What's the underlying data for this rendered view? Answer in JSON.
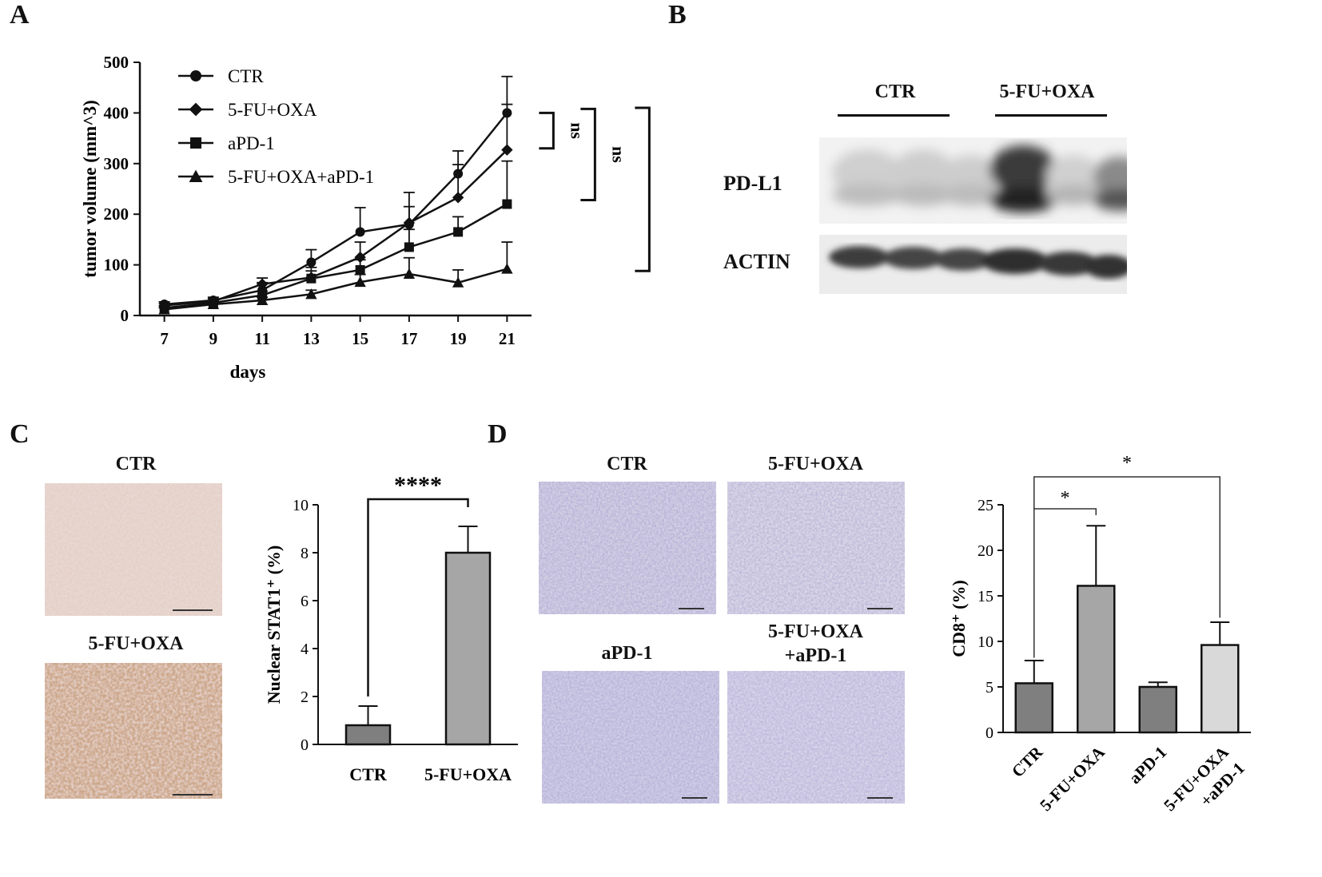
{
  "panels": {
    "A": {
      "letter": "A",
      "chart_data": {
        "type": "line",
        "xlabel": "days",
        "ylabel": "tumor volume (mm^3)",
        "x": [
          7,
          9,
          11,
          13,
          15,
          17,
          19,
          21
        ],
        "xlim": [
          6,
          22
        ],
        "ylim": [
          0,
          500
        ],
        "yticks": [
          0,
          100,
          200,
          300,
          400,
          500
        ],
        "xticks": [
          7,
          9,
          11,
          13,
          15,
          17,
          19,
          21
        ],
        "legend_position": "top-left",
        "series": [
          {
            "name": "CTR",
            "marker": "circle",
            "values": [
              22,
              30,
              50,
              105,
              165,
              180,
              280,
              400
            ],
            "errors": [
              5,
              6,
              15,
              25,
              48,
              35,
              45,
              72
            ]
          },
          {
            "name": "5-FU+OXA",
            "marker": "diamond",
            "values": [
              20,
              28,
              62,
              75,
              115,
              183,
              233,
              327
            ],
            "errors": [
              4,
              5,
              12,
              20,
              30,
              60,
              65,
              90
            ]
          },
          {
            "name": "aPD-1",
            "marker": "square",
            "values": [
              15,
              25,
              40,
              73,
              90,
              135,
              165,
              220
            ],
            "errors": [
              3,
              4,
              8,
              15,
              20,
              35,
              30,
              85
            ]
          },
          {
            "name": "5-FU+OXA+aPD-1",
            "marker": "triangle",
            "values": [
              12,
              22,
              30,
              42,
              66,
              82,
              65,
              92
            ],
            "errors": [
              3,
              4,
              6,
              8,
              15,
              32,
              25,
              53
            ]
          }
        ],
        "significance": [
          {
            "label": "ns"
          },
          {
            "label": "ns"
          },
          {
            "label": "**"
          }
        ]
      }
    },
    "B": {
      "letter": "B",
      "group_labels": [
        "CTR",
        "5-FU+OXA"
      ],
      "row_labels": [
        "PD-L1",
        "ACTIN"
      ]
    },
    "C": {
      "letter": "C",
      "image_labels": [
        "CTR",
        "5-FU+OXA"
      ],
      "chart_data": {
        "type": "bar",
        "categories": [
          "CTR",
          "5-FU+OXA"
        ],
        "values": [
          0.8,
          8.0
        ],
        "errors": [
          0.8,
          1.1
        ],
        "ylabel": "Nuclear STAT1⁺ (%)",
        "ylim": [
          0,
          10
        ],
        "yticks": [
          0,
          2,
          4,
          6,
          8,
          10
        ],
        "significance": [
          {
            "label": "****"
          }
        ],
        "colors": [
          "#7f7f7f",
          "#a6a6a6"
        ]
      }
    },
    "D": {
      "letter": "D",
      "image_labels": [
        "CTR",
        "5-FU+OXA",
        "aPD-1",
        "5-FU+OXA",
        "+aPD-1"
      ],
      "chart_data": {
        "type": "bar",
        "categories": [
          "CTR",
          "5-FU+OXA",
          "aPD-1",
          "5-FU+OXA"
        ],
        "category_second_line": [
          "",
          "",
          "",
          "+aPD-1"
        ],
        "values": [
          5.4,
          16.1,
          5.0,
          9.6
        ],
        "errors": [
          2.5,
          6.6,
          0.5,
          2.5
        ],
        "ylabel": "CD8⁺ (%)",
        "ylim": [
          0,
          25
        ],
        "yticks": [
          0,
          5,
          10,
          15,
          20,
          25
        ],
        "significance": [
          {
            "label": "*"
          },
          {
            "label": "*"
          }
        ],
        "colors": [
          "#7f7f7f",
          "#a6a6a6",
          "#7f7f7f",
          "#d9d9d9"
        ]
      }
    }
  }
}
